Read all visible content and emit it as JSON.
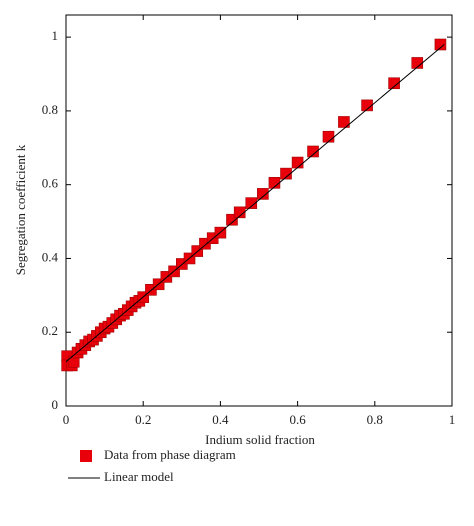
{
  "chart_data": {
    "type": "scatter",
    "x_label": "Indium solid fraction",
    "y_label": "Segregation coefficient k",
    "xlim": [
      0,
      1
    ],
    "ylim": [
      0,
      1.06
    ],
    "xticks": [
      0,
      0.2,
      0.4,
      0.6,
      0.8,
      1
    ],
    "yticks": [
      0,
      0.2,
      0.4,
      0.6,
      0.8,
      1
    ],
    "series": [
      {
        "name": "Data from phase diagram",
        "type": "scatter",
        "color": "#e8000b",
        "x": [
          0.003,
          0.003,
          0.015,
          0.02,
          0.03,
          0.04,
          0.05,
          0.06,
          0.07,
          0.08,
          0.09,
          0.1,
          0.11,
          0.12,
          0.13,
          0.14,
          0.15,
          0.16,
          0.17,
          0.18,
          0.19,
          0.2,
          0.22,
          0.24,
          0.26,
          0.28,
          0.3,
          0.32,
          0.34,
          0.36,
          0.38,
          0.4,
          0.43,
          0.45,
          0.48,
          0.51,
          0.54,
          0.57,
          0.6,
          0.64,
          0.68,
          0.72,
          0.78,
          0.85,
          0.91,
          0.97
        ],
        "values": [
          0.135,
          0.11,
          0.11,
          0.12,
          0.145,
          0.155,
          0.165,
          0.175,
          0.18,
          0.19,
          0.2,
          0.21,
          0.215,
          0.225,
          0.235,
          0.245,
          0.25,
          0.26,
          0.27,
          0.28,
          0.285,
          0.295,
          0.315,
          0.33,
          0.35,
          0.365,
          0.385,
          0.4,
          0.42,
          0.44,
          0.455,
          0.47,
          0.505,
          0.525,
          0.55,
          0.575,
          0.605,
          0.63,
          0.66,
          0.69,
          0.73,
          0.77,
          0.815,
          0.875,
          0.93,
          0.98
        ]
      },
      {
        "name": "Linear model",
        "type": "line",
        "color": "#000000",
        "x": [
          0,
          0.98
        ],
        "values": [
          0.12,
          0.98
        ]
      }
    ]
  }
}
